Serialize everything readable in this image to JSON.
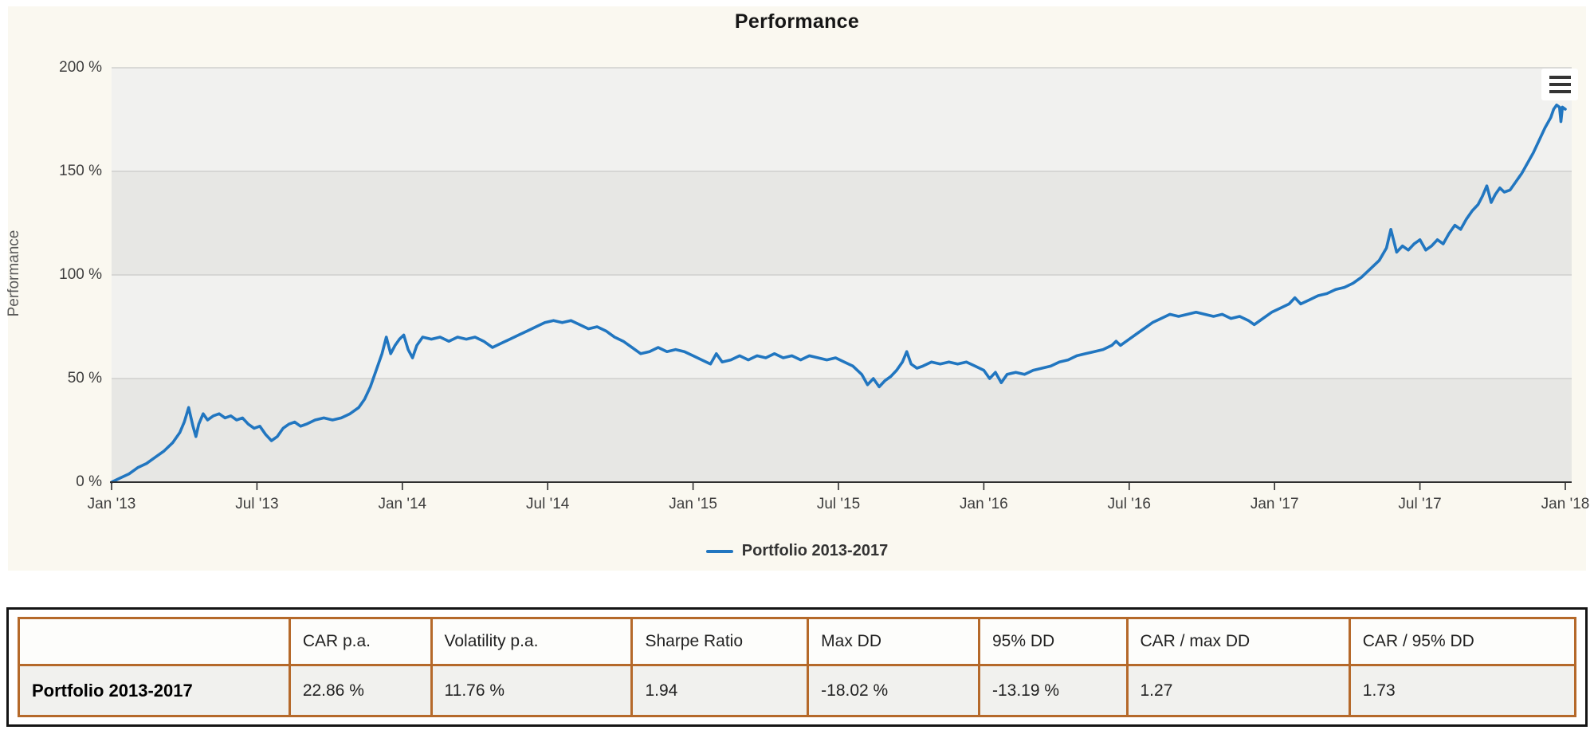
{
  "chart": {
    "title": "Performance",
    "context_menu_icon": "hamburger-menu-icon",
    "legend_label": "Portfolio 2013-2017"
  },
  "chart_data": {
    "type": "line",
    "title": "Performance",
    "xlabel": "",
    "ylabel": "Performance",
    "ylim": [
      0,
      200
    ],
    "y_tick_labels": [
      "0 %",
      "50 %",
      "100 %",
      "150 %",
      "200 %"
    ],
    "x_tick_labels": [
      "Jan '13",
      "Jul '13",
      "Jan '14",
      "Jul '14",
      "Jan '15",
      "Jul '15",
      "Jan '16",
      "Jul '16",
      "Jan '17",
      "Jul '17",
      "Jan '18"
    ],
    "x_range_years": [
      2013.0,
      2018.0
    ],
    "grid": "horizontal-alternating-bands",
    "legend_position": "bottom",
    "series": [
      {
        "name": "Portfolio 2013-2017",
        "color": "#2176c0",
        "points_year_value": [
          [
            2013.0,
            0
          ],
          [
            2013.03,
            2
          ],
          [
            2013.06,
            4
          ],
          [
            2013.09,
            7
          ],
          [
            2013.12,
            9
          ],
          [
            2013.15,
            12
          ],
          [
            2013.18,
            15
          ],
          [
            2013.21,
            19
          ],
          [
            2013.235,
            24
          ],
          [
            2013.25,
            29
          ],
          [
            2013.265,
            36
          ],
          [
            2013.28,
            27
          ],
          [
            2013.29,
            22
          ],
          [
            2013.3,
            28
          ],
          [
            2013.315,
            33
          ],
          [
            2013.33,
            30
          ],
          [
            2013.35,
            32
          ],
          [
            2013.37,
            33
          ],
          [
            2013.39,
            31
          ],
          [
            2013.41,
            32
          ],
          [
            2013.43,
            30
          ],
          [
            2013.45,
            31
          ],
          [
            2013.47,
            28
          ],
          [
            2013.49,
            26
          ],
          [
            2013.51,
            27
          ],
          [
            2013.53,
            23
          ],
          [
            2013.55,
            20
          ],
          [
            2013.57,
            22
          ],
          [
            2013.59,
            26
          ],
          [
            2013.61,
            28
          ],
          [
            2013.63,
            29
          ],
          [
            2013.65,
            27
          ],
          [
            2013.67,
            28
          ],
          [
            2013.7,
            30
          ],
          [
            2013.73,
            31
          ],
          [
            2013.76,
            30
          ],
          [
            2013.79,
            31
          ],
          [
            2013.82,
            33
          ],
          [
            2013.85,
            36
          ],
          [
            2013.87,
            40
          ],
          [
            2013.89,
            46
          ],
          [
            2013.91,
            54
          ],
          [
            2013.93,
            62
          ],
          [
            2013.945,
            70
          ],
          [
            2013.96,
            62
          ],
          [
            2013.975,
            66
          ],
          [
            2013.99,
            69
          ],
          [
            2014.005,
            71
          ],
          [
            2014.02,
            64
          ],
          [
            2014.035,
            60
          ],
          [
            2014.05,
            66
          ],
          [
            2014.07,
            70
          ],
          [
            2014.1,
            69
          ],
          [
            2014.13,
            70
          ],
          [
            2014.16,
            68
          ],
          [
            2014.19,
            70
          ],
          [
            2014.22,
            69
          ],
          [
            2014.25,
            70
          ],
          [
            2014.28,
            68
          ],
          [
            2014.31,
            65
          ],
          [
            2014.34,
            67
          ],
          [
            2014.37,
            69
          ],
          [
            2014.4,
            71
          ],
          [
            2014.43,
            73
          ],
          [
            2014.46,
            75
          ],
          [
            2014.49,
            77
          ],
          [
            2014.52,
            78
          ],
          [
            2014.55,
            77
          ],
          [
            2014.58,
            78
          ],
          [
            2014.61,
            76
          ],
          [
            2014.64,
            74
          ],
          [
            2014.67,
            75
          ],
          [
            2014.7,
            73
          ],
          [
            2014.73,
            70
          ],
          [
            2014.76,
            68
          ],
          [
            2014.79,
            65
          ],
          [
            2014.82,
            62
          ],
          [
            2014.85,
            63
          ],
          [
            2014.88,
            65
          ],
          [
            2014.91,
            63
          ],
          [
            2014.94,
            64
          ],
          [
            2014.97,
            63
          ],
          [
            2015.0,
            61
          ],
          [
            2015.03,
            59
          ],
          [
            2015.06,
            57
          ],
          [
            2015.08,
            62
          ],
          [
            2015.1,
            58
          ],
          [
            2015.13,
            59
          ],
          [
            2015.16,
            61
          ],
          [
            2015.19,
            59
          ],
          [
            2015.22,
            61
          ],
          [
            2015.25,
            60
          ],
          [
            2015.28,
            62
          ],
          [
            2015.31,
            60
          ],
          [
            2015.34,
            61
          ],
          [
            2015.37,
            59
          ],
          [
            2015.4,
            61
          ],
          [
            2015.43,
            60
          ],
          [
            2015.46,
            59
          ],
          [
            2015.49,
            60
          ],
          [
            2015.52,
            58
          ],
          [
            2015.55,
            56
          ],
          [
            2015.58,
            52
          ],
          [
            2015.6,
            47
          ],
          [
            2015.62,
            50
          ],
          [
            2015.64,
            46
          ],
          [
            2015.66,
            49
          ],
          [
            2015.68,
            51
          ],
          [
            2015.7,
            54
          ],
          [
            2015.72,
            58
          ],
          [
            2015.735,
            63
          ],
          [
            2015.75,
            57
          ],
          [
            2015.77,
            55
          ],
          [
            2015.79,
            56
          ],
          [
            2015.82,
            58
          ],
          [
            2015.85,
            57
          ],
          [
            2015.88,
            58
          ],
          [
            2015.91,
            57
          ],
          [
            2015.94,
            58
          ],
          [
            2015.97,
            56
          ],
          [
            2016.0,
            54
          ],
          [
            2016.02,
            50
          ],
          [
            2016.04,
            53
          ],
          [
            2016.06,
            48
          ],
          [
            2016.08,
            52
          ],
          [
            2016.11,
            53
          ],
          [
            2016.14,
            52
          ],
          [
            2016.17,
            54
          ],
          [
            2016.2,
            55
          ],
          [
            2016.23,
            56
          ],
          [
            2016.26,
            58
          ],
          [
            2016.29,
            59
          ],
          [
            2016.32,
            61
          ],
          [
            2016.35,
            62
          ],
          [
            2016.38,
            63
          ],
          [
            2016.41,
            64
          ],
          [
            2016.44,
            66
          ],
          [
            2016.455,
            68
          ],
          [
            2016.47,
            66
          ],
          [
            2016.49,
            68
          ],
          [
            2016.52,
            71
          ],
          [
            2016.55,
            74
          ],
          [
            2016.58,
            77
          ],
          [
            2016.61,
            79
          ],
          [
            2016.64,
            81
          ],
          [
            2016.67,
            80
          ],
          [
            2016.7,
            81
          ],
          [
            2016.73,
            82
          ],
          [
            2016.76,
            81
          ],
          [
            2016.79,
            80
          ],
          [
            2016.82,
            81
          ],
          [
            2016.85,
            79
          ],
          [
            2016.88,
            80
          ],
          [
            2016.91,
            78
          ],
          [
            2016.93,
            76
          ],
          [
            2016.96,
            79
          ],
          [
            2016.99,
            82
          ],
          [
            2017.02,
            84
          ],
          [
            2017.05,
            86
          ],
          [
            2017.07,
            89
          ],
          [
            2017.09,
            86
          ],
          [
            2017.12,
            88
          ],
          [
            2017.15,
            90
          ],
          [
            2017.18,
            91
          ],
          [
            2017.21,
            93
          ],
          [
            2017.24,
            94
          ],
          [
            2017.27,
            96
          ],
          [
            2017.3,
            99
          ],
          [
            2017.33,
            103
          ],
          [
            2017.36,
            107
          ],
          [
            2017.385,
            113
          ],
          [
            2017.4,
            122
          ],
          [
            2017.42,
            111
          ],
          [
            2017.44,
            114
          ],
          [
            2017.46,
            112
          ],
          [
            2017.48,
            115
          ],
          [
            2017.5,
            117
          ],
          [
            2017.52,
            112
          ],
          [
            2017.54,
            114
          ],
          [
            2017.56,
            117
          ],
          [
            2017.58,
            115
          ],
          [
            2017.6,
            120
          ],
          [
            2017.62,
            124
          ],
          [
            2017.64,
            122
          ],
          [
            2017.66,
            127
          ],
          [
            2017.68,
            131
          ],
          [
            2017.7,
            134
          ],
          [
            2017.715,
            138
          ],
          [
            2017.73,
            143
          ],
          [
            2017.745,
            135
          ],
          [
            2017.76,
            139
          ],
          [
            2017.775,
            142
          ],
          [
            2017.79,
            140
          ],
          [
            2017.81,
            141
          ],
          [
            2017.83,
            145
          ],
          [
            2017.85,
            149
          ],
          [
            2017.87,
            154
          ],
          [
            2017.89,
            159
          ],
          [
            2017.91,
            165
          ],
          [
            2017.93,
            171
          ],
          [
            2017.95,
            176
          ],
          [
            2017.96,
            180
          ],
          [
            2017.97,
            182
          ],
          [
            2017.98,
            181
          ],
          [
            2017.985,
            174
          ],
          [
            2017.99,
            181
          ],
          [
            2018.0,
            180
          ]
        ]
      }
    ]
  },
  "table": {
    "columns": [
      "",
      "CAR p.a.",
      "Volatility p.a.",
      "Sharpe Ratio",
      "Max DD",
      "95% DD",
      "CAR / max DD",
      "CAR / 95% DD"
    ],
    "rows": [
      {
        "label": "Portfolio 2013-2017",
        "values": [
          "22.86 %",
          "11.76 %",
          "1.94",
          "-18.02 %",
          "-13.19 %",
          "1.27",
          "1.73"
        ]
      }
    ]
  },
  "colors": {
    "page_bg": "#ffffff",
    "card_bg": "#faf8f0",
    "band_light": "#f1f1ef",
    "band_dark": "#e7e7e4",
    "gridline": "#cfcfcd",
    "axis_line": "#2f2f2f",
    "series_blue": "#2176c0",
    "label_gray": "#3e3e3e",
    "axis_title_gray": "#5a5a5a",
    "table_border_orange": "#b5692a",
    "table_frame_black": "#141414",
    "table_row_bg": "#f1f1ee",
    "table_header_bg": "#fdfdfb",
    "title_black": "#161616",
    "legend_text": "#333333"
  }
}
